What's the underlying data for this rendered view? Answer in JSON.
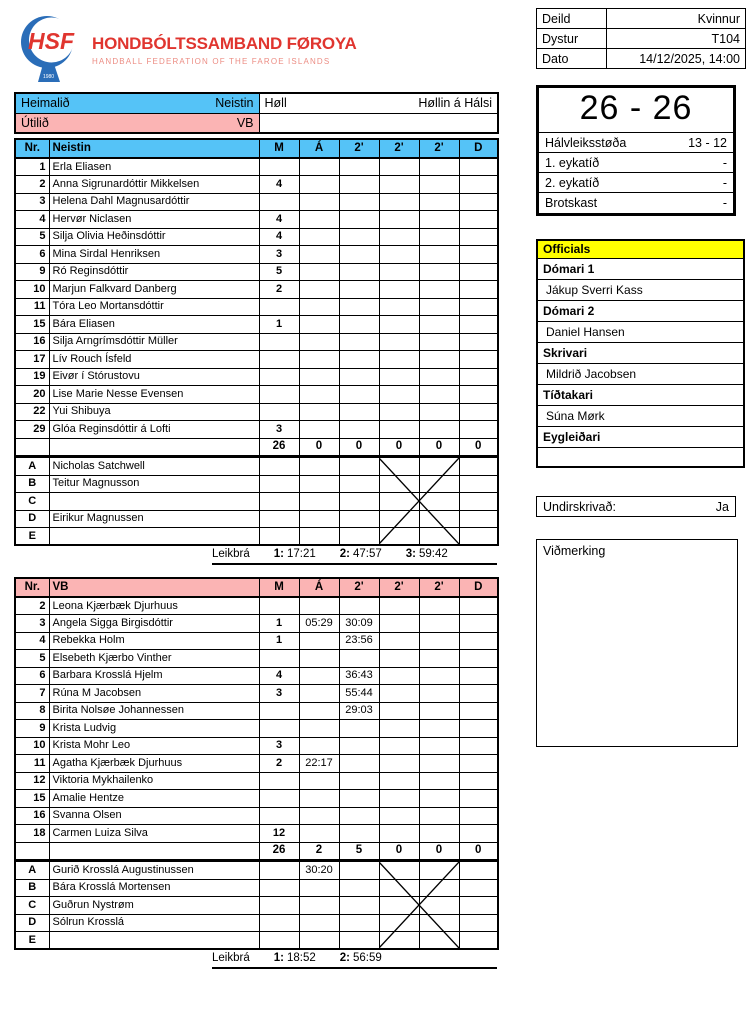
{
  "header": {
    "logo": {
      "acronym": "HSF",
      "title": "HONDBÓLTSSAMBAND FØROYA",
      "subtitle": "HANDBALL FEDERATION OF THE FAROE ISLANDS",
      "year": "1980"
    },
    "meta": [
      {
        "label": "Deild",
        "value": "Kvinnur"
      },
      {
        "label": "Dystur",
        "value": "T104"
      },
      {
        "label": "Dato",
        "value": "14/12/2025, 14:00"
      }
    ]
  },
  "colors": {
    "home_header": "#55c3f7",
    "away_header": "#fbb4b4",
    "officials_header": "#ffff00",
    "logo_red": "#e0352f",
    "logo_blue": "#2a6db8"
  },
  "match_info": {
    "home_label": "Heimalið",
    "home_value": "Neistin",
    "away_label": "Útilið",
    "away_value": "VB",
    "hall_label": "Høll",
    "hall_value": "Høllin á Hálsi",
    "away_hall_value": ""
  },
  "score": {
    "final": "26 - 26",
    "rows": [
      {
        "label": "Hálvleiksstøða",
        "value": "13 - 12"
      },
      {
        "label": "1. eykatíð",
        "value": "-"
      },
      {
        "label": "2. eykatíð",
        "value": "-"
      },
      {
        "label": "Brotskast",
        "value": "-"
      }
    ]
  },
  "officials": {
    "title": "Officials",
    "entries": [
      {
        "role": "Dómari 1",
        "name": "Jákup Sverri Kass"
      },
      {
        "role": "Dómari 2",
        "name": "Daniel Hansen"
      },
      {
        "role": "Skrivari",
        "name": "Mildrið Jacobsen"
      },
      {
        "role": "Tíðtakari",
        "name": "Súna Mørk"
      },
      {
        "role": "Eygleiðari",
        "name": ""
      }
    ]
  },
  "signed": {
    "label": "Undirskrivað:",
    "value": "Ja"
  },
  "remarks": {
    "label": "Viðmerking",
    "text": ""
  },
  "tables": [
    {
      "team": "Neistin",
      "columns": [
        "Nr.",
        "Neistin",
        "M",
        "Á",
        "2'",
        "2'",
        "2'",
        "D"
      ],
      "players": [
        {
          "nr": "1",
          "name": "Erla Eliasen",
          "cells": [
            "",
            "",
            "",
            "",
            "",
            ""
          ]
        },
        {
          "nr": "2",
          "name": "Anna Sigrunardóttir Mikkelsen",
          "cells": [
            "4",
            "",
            "",
            "",
            "",
            ""
          ]
        },
        {
          "nr": "3",
          "name": "Helena Dahl Magnusardóttir",
          "cells": [
            "",
            "",
            "",
            "",
            "",
            ""
          ]
        },
        {
          "nr": "4",
          "name": "Hervør Niclasen",
          "cells": [
            "4",
            "",
            "",
            "",
            "",
            ""
          ]
        },
        {
          "nr": "5",
          "name": "Silja Olivia Heðinsdóttir",
          "cells": [
            "4",
            "",
            "",
            "",
            "",
            ""
          ]
        },
        {
          "nr": "6",
          "name": "Mina Sirdal Henriksen",
          "cells": [
            "3",
            "",
            "",
            "",
            "",
            ""
          ]
        },
        {
          "nr": "9",
          "name": "Ró Reginsdóttir",
          "cells": [
            "5",
            "",
            "",
            "",
            "",
            ""
          ]
        },
        {
          "nr": "10",
          "name": "Marjun Falkvard Danberg",
          "cells": [
            "2",
            "",
            "",
            "",
            "",
            ""
          ]
        },
        {
          "nr": "11",
          "name": "Tóra Leo Mortansdóttir",
          "cells": [
            "",
            "",
            "",
            "",
            "",
            ""
          ]
        },
        {
          "nr": "15",
          "name": "Bára Eliasen",
          "cells": [
            "1",
            "",
            "",
            "",
            "",
            ""
          ]
        },
        {
          "nr": "16",
          "name": "Silja Arngrímsdóttir Müller",
          "cells": [
            "",
            "",
            "",
            "",
            "",
            ""
          ]
        },
        {
          "nr": "17",
          "name": "Lív Rouch Ísfeld",
          "cells": [
            "",
            "",
            "",
            "",
            "",
            ""
          ]
        },
        {
          "nr": "19",
          "name": "Eivør í Stórustovu",
          "cells": [
            "",
            "",
            "",
            "",
            "",
            ""
          ]
        },
        {
          "nr": "20",
          "name": "Lise Marie Nesse Evensen",
          "cells": [
            "",
            "",
            "",
            "",
            "",
            ""
          ]
        },
        {
          "nr": "22",
          "name": "Yui Shibuya",
          "cells": [
            "",
            "",
            "",
            "",
            "",
            ""
          ]
        },
        {
          "nr": "29",
          "name": "Glóa Reginsdóttir á Lofti",
          "cells": [
            "3",
            "",
            "",
            "",
            "",
            ""
          ]
        }
      ],
      "totals": [
        "26",
        "0",
        "0",
        "0",
        "0",
        "0"
      ],
      "staff": [
        {
          "nr": "A",
          "name": "Nicholas Satchwell",
          "cells": [
            "",
            "",
            "",
            "",
            "",
            ""
          ]
        },
        {
          "nr": "B",
          "name": "Teitur Magnusson",
          "cells": [
            "",
            "",
            "",
            "",
            "",
            ""
          ]
        },
        {
          "nr": "C",
          "name": "",
          "cells": [
            "",
            "",
            "",
            "",
            "",
            ""
          ]
        },
        {
          "nr": "D",
          "name": "Eirikur Magnussen",
          "cells": [
            "",
            "",
            "",
            "",
            "",
            ""
          ]
        },
        {
          "nr": "E",
          "name": "",
          "cells": [
            "",
            "",
            "",
            "",
            "",
            ""
          ]
        }
      ],
      "leikbra": {
        "label": "Leikbrá",
        "periods": [
          {
            "n": "1:",
            "t": "17:21"
          },
          {
            "n": "2:",
            "t": "47:57"
          },
          {
            "n": "3:",
            "t": "59:42"
          }
        ]
      }
    },
    {
      "team": "VB",
      "columns": [
        "Nr.",
        "VB",
        "M",
        "Á",
        "2'",
        "2'",
        "2'",
        "D"
      ],
      "players": [
        {
          "nr": "2",
          "name": "Leona Kjærbæk Djurhuus",
          "cells": [
            "",
            "",
            "",
            "",
            "",
            ""
          ]
        },
        {
          "nr": "3",
          "name": "Angela Sigga Birgisdóttir",
          "cells": [
            "1",
            "05:29",
            "30:09",
            "",
            "",
            ""
          ]
        },
        {
          "nr": "4",
          "name": "Rebekka Holm",
          "cells": [
            "1",
            "",
            "23:56",
            "",
            "",
            ""
          ]
        },
        {
          "nr": "5",
          "name": "Elsebeth Kjærbo Vinther",
          "cells": [
            "",
            "",
            "",
            "",
            "",
            ""
          ]
        },
        {
          "nr": "6",
          "name": "Barbara Krosslá Hjelm",
          "cells": [
            "4",
            "",
            "36:43",
            "",
            "",
            ""
          ]
        },
        {
          "nr": "7",
          "name": "Rúna M Jacobsen",
          "cells": [
            "3",
            "",
            "55:44",
            "",
            "",
            ""
          ]
        },
        {
          "nr": "8",
          "name": "Birita Nolsøe Johannessen",
          "cells": [
            "",
            "",
            "29:03",
            "",
            "",
            ""
          ]
        },
        {
          "nr": "9",
          "name": "Krista Ludvig",
          "cells": [
            "",
            "",
            "",
            "",
            "",
            ""
          ]
        },
        {
          "nr": "10",
          "name": "Krista Mohr Leo",
          "cells": [
            "3",
            "",
            "",
            "",
            "",
            ""
          ]
        },
        {
          "nr": "11",
          "name": "Agatha Kjærbæk Djurhuus",
          "cells": [
            "2",
            "22:17",
            "",
            "",
            "",
            ""
          ]
        },
        {
          "nr": "12",
          "name": "Viktoria Mykhailenko",
          "cells": [
            "",
            "",
            "",
            "",
            "",
            ""
          ]
        },
        {
          "nr": "15",
          "name": "Amalie Hentze",
          "cells": [
            "",
            "",
            "",
            "",
            "",
            ""
          ]
        },
        {
          "nr": "16",
          "name": "Svanna Olsen",
          "cells": [
            "",
            "",
            "",
            "",
            "",
            ""
          ]
        },
        {
          "nr": "18",
          "name": "Carmen Luiza Silva",
          "cells": [
            "12",
            "",
            "",
            "",
            "",
            ""
          ]
        }
      ],
      "totals": [
        "26",
        "2",
        "5",
        "0",
        "0",
        "0"
      ],
      "staff": [
        {
          "nr": "A",
          "name": "Gurið Krosslá Augustinussen",
          "cells": [
            "",
            "30:20",
            "",
            "",
            "",
            ""
          ]
        },
        {
          "nr": "B",
          "name": "Bára Krosslá Mortensen",
          "cells": [
            "",
            "",
            "",
            "",
            "",
            ""
          ]
        },
        {
          "nr": "C",
          "name": "Guðrun Nystrøm",
          "cells": [
            "",
            "",
            "",
            "",
            "",
            ""
          ]
        },
        {
          "nr": "D",
          "name": "Sólrun Krosslá",
          "cells": [
            "",
            "",
            "",
            "",
            "",
            ""
          ]
        },
        {
          "nr": "E",
          "name": "",
          "cells": [
            "",
            "",
            "",
            "",
            "",
            ""
          ]
        }
      ],
      "leikbra": {
        "label": "Leikbrá",
        "periods": [
          {
            "n": "1:",
            "t": "18:52"
          },
          {
            "n": "2:",
            "t": "56:59"
          }
        ]
      }
    }
  ]
}
